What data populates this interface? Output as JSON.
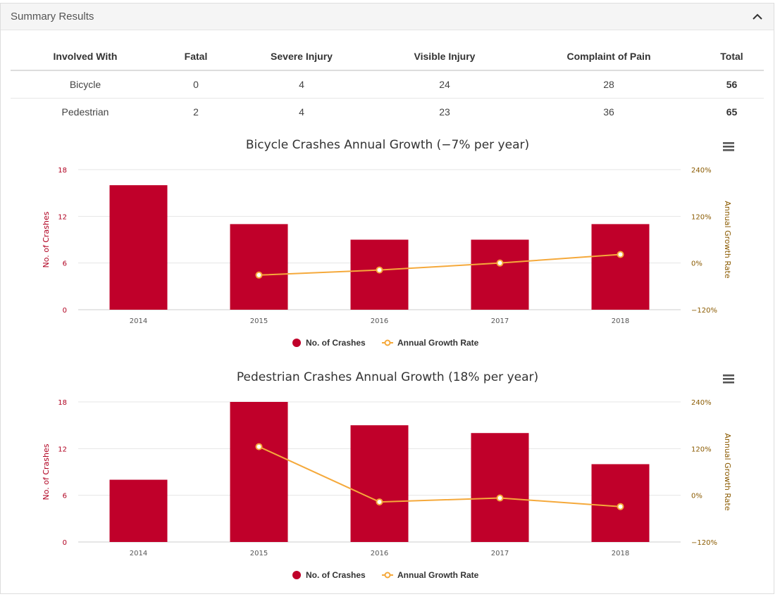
{
  "panel": {
    "title": "Summary Results"
  },
  "table": {
    "headers": [
      "Involved With",
      "Fatal",
      "Severe Injury",
      "Visible Injury",
      "Complaint of Pain",
      "Total"
    ],
    "rows": [
      [
        "Bicycle",
        "0",
        "4",
        "24",
        "28",
        "56"
      ],
      [
        "Pedestrian",
        "2",
        "4",
        "23",
        "36",
        "65"
      ]
    ]
  },
  "colors": {
    "bar": "#c0002a",
    "line": "#f5a93b",
    "right_axis": "#8a5a00"
  },
  "chart_data": [
    {
      "type": "bar",
      "title": "Bicycle Crashes Annual Growth (−7% per year)",
      "categories": [
        "2014",
        "2015",
        "2016",
        "2017",
        "2018"
      ],
      "ylabel": "No. of Crashes",
      "y2label": "Annual Growth Rate",
      "ylim": [
        0,
        18
      ],
      "yticks": [
        "0",
        "6",
        "12",
        "18"
      ],
      "y2lim": [
        -120,
        240
      ],
      "y2ticks": [
        "−120%",
        "0%",
        "120%",
        "240%"
      ],
      "series": [
        {
          "name": "No. of Crashes",
          "type": "bar",
          "values": [
            16,
            11,
            9,
            9,
            11
          ]
        },
        {
          "name": "Annual Growth Rate",
          "type": "line",
          "values": [
            null,
            -31,
            -18,
            0,
            22
          ]
        }
      ],
      "legend": "bottom-center",
      "grid": true
    },
    {
      "type": "bar",
      "title": "Pedestrian Crashes Annual Growth (18% per year)",
      "categories": [
        "2014",
        "2015",
        "2016",
        "2017",
        "2018"
      ],
      "ylabel": "No. of Crashes",
      "y2label": "Annual Growth Rate",
      "ylim": [
        0,
        18
      ],
      "yticks": [
        "0",
        "6",
        "12",
        "18"
      ],
      "y2lim": [
        -120,
        240
      ],
      "y2ticks": [
        "−120%",
        "0%",
        "120%",
        "240%"
      ],
      "series": [
        {
          "name": "No. of Crashes",
          "type": "bar",
          "values": [
            8,
            18,
            15,
            14,
            10
          ]
        },
        {
          "name": "Annual Growth Rate",
          "type": "line",
          "values": [
            null,
            125,
            -17,
            -7,
            -29
          ]
        }
      ],
      "legend": "bottom-center",
      "grid": true
    }
  ]
}
